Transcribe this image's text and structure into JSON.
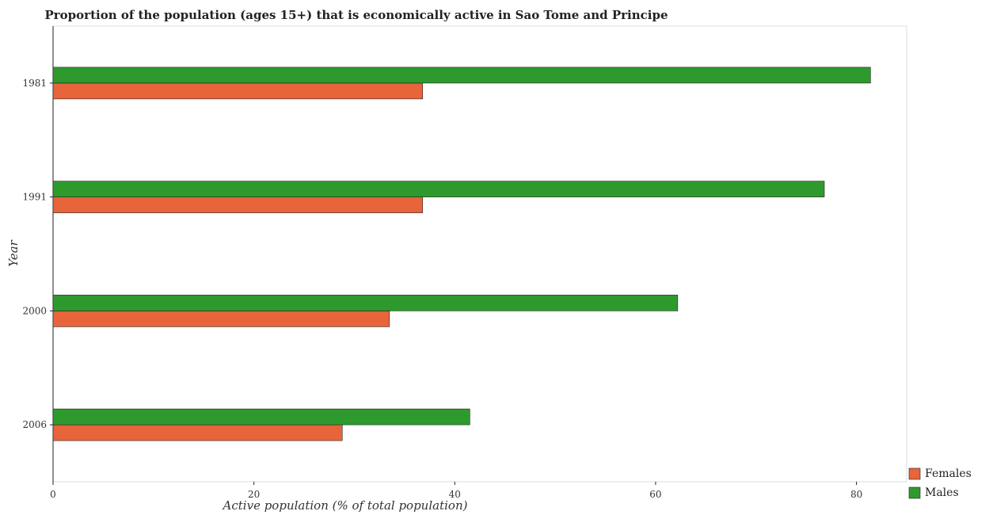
{
  "chart_data": {
    "type": "bar",
    "orientation": "horizontal",
    "title": "Proportion of the population (ages 15+) that is economically active in Sao Tome and Principe",
    "xlabel": "Active population (% of total population)",
    "ylabel": "Year",
    "categories": [
      "1981",
      "1991",
      "2000",
      "2006"
    ],
    "series": [
      {
        "name": "Females",
        "color": "#e8643a",
        "values": [
          36.8,
          36.8,
          33.5,
          28.8
        ]
      },
      {
        "name": "Males",
        "color": "#2e9a2e",
        "values": [
          81.4,
          76.8,
          62.2,
          41.5
        ]
      }
    ],
    "xlim": [
      0,
      85
    ],
    "xticks": [
      0,
      20,
      40,
      60,
      80
    ],
    "grid": false,
    "legend_position": "bottom-right"
  }
}
